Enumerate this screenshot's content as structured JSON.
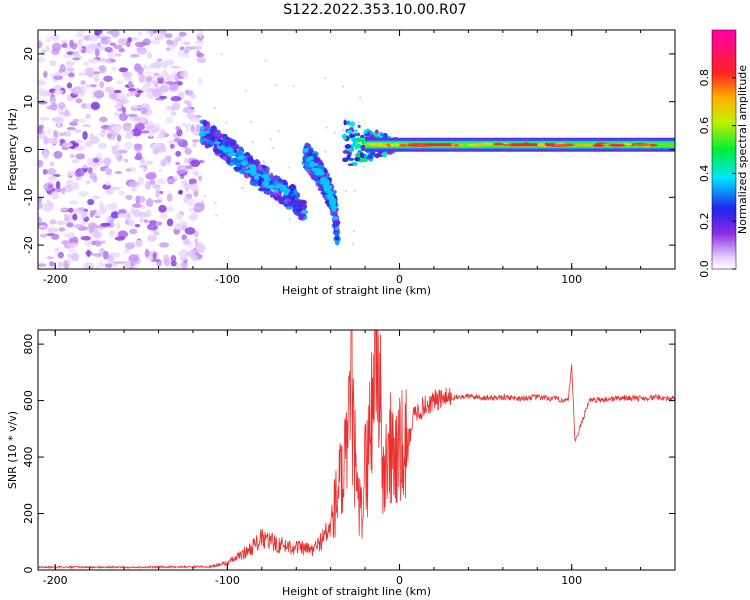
{
  "title": "S122.2022.353.10.00.R07",
  "colors": {
    "snr_line": "#e8302e",
    "axis": "#000000"
  },
  "chart_data": [
    {
      "type": "heatmap",
      "xlabel": "Height of straight line (km)",
      "ylabel": "Frequency (Hz)",
      "xlim": [
        -210,
        160
      ],
      "ylim": [
        -25,
        25
      ],
      "x_ticks": [
        -200,
        -100,
        0,
        100
      ],
      "y_ticks": [
        -20,
        -10,
        0,
        10,
        20
      ],
      "colorbar": {
        "label": "Normalized spectral amplitude",
        "range": [
          0,
          1
        ],
        "ticks": [
          "0.0",
          "0.2",
          "0.4",
          "0.6",
          "0.8"
        ],
        "tick_values": [
          0.0,
          0.2,
          0.4,
          0.6,
          0.8
        ],
        "colormap": "rainbow (white-purple-blue-cyan-green-yellow-red-magenta)"
      },
      "features": {
        "noise_region": {
          "x_range": [
            -210,
            -115
          ],
          "freq_range": [
            -25,
            25
          ],
          "amplitude": 0.1
        },
        "descending_branches": [
          {
            "points": [
              [
                -115,
                4
              ],
              [
                -100,
                0
              ],
              [
                -90,
                -3
              ],
              [
                -80,
                -6
              ],
              [
                -70,
                -8
              ],
              [
                -60,
                -11
              ],
              [
                -55,
                -13
              ]
            ]
          },
          {
            "points": [
              [
                -55,
                -1
              ],
              [
                -48,
                -4
              ],
              [
                -42,
                -8
              ],
              [
                -38,
                -12
              ],
              [
                -36,
                -18
              ]
            ]
          }
        ],
        "carrier_line": {
          "x_range": [
            -30,
            160
          ],
          "frequency": 1.0,
          "amplitude": 0.9
        }
      }
    },
    {
      "type": "line",
      "xlabel": "Height of straight line (km)",
      "ylabel": "SNR (10 * v/v)",
      "xlim": [
        -210,
        160
      ],
      "ylim": [
        0,
        850
      ],
      "x_ticks": [
        -200,
        -100,
        0,
        100
      ],
      "y_ticks": [
        0,
        200,
        400,
        600,
        800
      ],
      "series": [
        {
          "x": [
            -210,
            -150,
            -110,
            -100,
            -90,
            -80,
            -70,
            -60,
            -50,
            -40,
            -35,
            -30,
            -28,
            -25,
            -22,
            -20,
            -17,
            -15,
            -12,
            -10,
            -8,
            -5,
            0,
            5,
            8,
            10,
            15,
            20,
            30,
            40,
            50,
            60,
            70,
            80,
            90,
            98,
            100,
            102,
            110,
            120,
            130,
            140,
            150,
            160
          ],
          "y": [
            10,
            10,
            12,
            25,
            60,
            110,
            90,
            80,
            70,
            150,
            300,
            380,
            720,
            250,
            200,
            350,
            480,
            750,
            800,
            300,
            380,
            420,
            400,
            450,
            540,
            560,
            580,
            600,
            610,
            615,
            610,
            612,
            608,
            612,
            606,
            600,
            720,
            450,
            600,
            605,
            610,
            608,
            612,
            605
          ]
        }
      ]
    }
  ]
}
